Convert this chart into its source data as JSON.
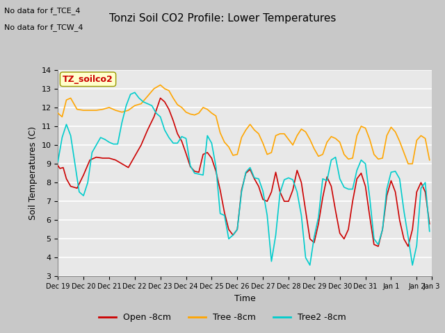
{
  "title": "Tonzi Soil CO2 Profile: Lower Temperatures",
  "xlabel": "Time",
  "ylabel": "Soil Temperatures (C)",
  "annotation1": "No data for f_TCE_4",
  "annotation2": "No data for f_TCW_4",
  "label_box": "TZ_soilco2",
  "ylim": [
    3.0,
    14.0
  ],
  "yticks": [
    3.0,
    4.0,
    5.0,
    6.0,
    7.0,
    8.0,
    9.0,
    10.0,
    11.0,
    12.0,
    13.0,
    14.0
  ],
  "fig_bg_color": "#c8c8c8",
  "plot_bg": "#e8e8e8",
  "legend_labels": [
    "Open -8cm",
    "Tree -8cm",
    "Tree2 -8cm"
  ],
  "legend_colors": [
    "#cc0000",
    "#ffa500",
    "#00cccc"
  ],
  "open_data": [
    [
      0,
      8.9
    ],
    [
      2,
      8.75
    ],
    [
      5,
      8.8
    ],
    [
      8,
      8.2
    ],
    [
      12,
      7.8
    ],
    [
      18,
      7.7
    ],
    [
      24,
      8.4
    ],
    [
      30,
      9.2
    ],
    [
      36,
      9.35
    ],
    [
      42,
      9.3
    ],
    [
      48,
      9.3
    ],
    [
      54,
      9.2
    ],
    [
      60,
      9.0
    ],
    [
      66,
      8.8
    ],
    [
      72,
      9.4
    ],
    [
      78,
      10.0
    ],
    [
      84,
      10.8
    ],
    [
      90,
      11.5
    ],
    [
      96,
      12.5
    ],
    [
      100,
      12.3
    ],
    [
      104,
      11.9
    ],
    [
      108,
      11.3
    ],
    [
      112,
      10.6
    ],
    [
      116,
      10.2
    ],
    [
      120,
      9.55
    ],
    [
      124,
      8.85
    ],
    [
      128,
      8.6
    ],
    [
      132,
      8.55
    ],
    [
      136,
      9.5
    ],
    [
      140,
      9.6
    ],
    [
      144,
      9.3
    ],
    [
      148,
      8.6
    ],
    [
      152,
      7.6
    ],
    [
      156,
      6.4
    ],
    [
      160,
      5.5
    ],
    [
      164,
      5.2
    ],
    [
      168,
      5.5
    ],
    [
      172,
      7.6
    ],
    [
      176,
      8.5
    ],
    [
      180,
      8.7
    ],
    [
      184,
      8.2
    ],
    [
      188,
      7.8
    ],
    [
      192,
      7.1
    ],
    [
      196,
      7.0
    ],
    [
      200,
      7.5
    ],
    [
      204,
      8.55
    ],
    [
      208,
      7.5
    ],
    [
      212,
      7.0
    ],
    [
      216,
      7.0
    ],
    [
      220,
      7.6
    ],
    [
      224,
      8.65
    ],
    [
      228,
      8.0
    ],
    [
      232,
      6.5
    ],
    [
      236,
      5.0
    ],
    [
      240,
      4.8
    ],
    [
      244,
      5.8
    ],
    [
      248,
      7.2
    ],
    [
      252,
      8.3
    ],
    [
      256,
      7.8
    ],
    [
      260,
      6.5
    ],
    [
      264,
      5.3
    ],
    [
      268,
      5.0
    ],
    [
      272,
      5.5
    ],
    [
      276,
      7.0
    ],
    [
      280,
      8.2
    ],
    [
      284,
      8.5
    ],
    [
      288,
      7.8
    ],
    [
      292,
      6.2
    ],
    [
      296,
      4.7
    ],
    [
      300,
      4.6
    ],
    [
      304,
      5.5
    ],
    [
      308,
      7.3
    ],
    [
      312,
      8.1
    ],
    [
      316,
      7.5
    ],
    [
      320,
      6.0
    ],
    [
      324,
      5.0
    ],
    [
      328,
      4.6
    ],
    [
      332,
      5.5
    ],
    [
      336,
      7.5
    ],
    [
      340,
      8.0
    ],
    [
      344,
      7.5
    ],
    [
      348,
      5.8
    ]
  ],
  "tree_data": [
    [
      0,
      11.7
    ],
    [
      4,
      11.5
    ],
    [
      8,
      12.4
    ],
    [
      12,
      12.5
    ],
    [
      18,
      11.9
    ],
    [
      24,
      11.85
    ],
    [
      30,
      11.85
    ],
    [
      36,
      11.85
    ],
    [
      42,
      11.9
    ],
    [
      48,
      12.0
    ],
    [
      54,
      11.85
    ],
    [
      60,
      11.75
    ],
    [
      66,
      11.85
    ],
    [
      72,
      12.1
    ],
    [
      78,
      12.2
    ],
    [
      84,
      12.6
    ],
    [
      90,
      13.0
    ],
    [
      96,
      13.2
    ],
    [
      100,
      13.0
    ],
    [
      104,
      12.9
    ],
    [
      108,
      12.5
    ],
    [
      112,
      12.15
    ],
    [
      116,
      12.0
    ],
    [
      120,
      11.75
    ],
    [
      124,
      11.65
    ],
    [
      128,
      11.6
    ],
    [
      132,
      11.7
    ],
    [
      136,
      12.0
    ],
    [
      140,
      11.9
    ],
    [
      144,
      11.7
    ],
    [
      148,
      11.55
    ],
    [
      152,
      10.65
    ],
    [
      156,
      10.15
    ],
    [
      160,
      9.9
    ],
    [
      164,
      9.45
    ],
    [
      168,
      9.5
    ],
    [
      172,
      10.4
    ],
    [
      176,
      10.8
    ],
    [
      180,
      11.1
    ],
    [
      184,
      10.8
    ],
    [
      188,
      10.6
    ],
    [
      192,
      10.1
    ],
    [
      196,
      9.5
    ],
    [
      200,
      9.6
    ],
    [
      204,
      10.5
    ],
    [
      208,
      10.6
    ],
    [
      212,
      10.6
    ],
    [
      216,
      10.3
    ],
    [
      220,
      10.0
    ],
    [
      224,
      10.5
    ],
    [
      228,
      10.85
    ],
    [
      232,
      10.7
    ],
    [
      236,
      10.3
    ],
    [
      240,
      9.8
    ],
    [
      244,
      9.4
    ],
    [
      248,
      9.5
    ],
    [
      252,
      10.15
    ],
    [
      256,
      10.45
    ],
    [
      260,
      10.35
    ],
    [
      264,
      10.15
    ],
    [
      268,
      9.5
    ],
    [
      272,
      9.25
    ],
    [
      276,
      9.3
    ],
    [
      280,
      10.5
    ],
    [
      284,
      11.0
    ],
    [
      288,
      10.9
    ],
    [
      292,
      10.3
    ],
    [
      296,
      9.5
    ],
    [
      300,
      9.25
    ],
    [
      304,
      9.3
    ],
    [
      308,
      10.5
    ],
    [
      312,
      10.95
    ],
    [
      316,
      10.7
    ],
    [
      320,
      10.2
    ],
    [
      324,
      9.6
    ],
    [
      328,
      9.0
    ],
    [
      332,
      9.0
    ],
    [
      336,
      10.25
    ],
    [
      340,
      10.5
    ],
    [
      344,
      10.35
    ],
    [
      348,
      9.2
    ]
  ],
  "tree2_data": [
    [
      0,
      9.1
    ],
    [
      4,
      10.4
    ],
    [
      8,
      11.1
    ],
    [
      12,
      10.5
    ],
    [
      16,
      9.0
    ],
    [
      20,
      7.5
    ],
    [
      24,
      7.3
    ],
    [
      28,
      8.0
    ],
    [
      32,
      9.6
    ],
    [
      36,
      10.0
    ],
    [
      40,
      10.4
    ],
    [
      44,
      10.3
    ],
    [
      48,
      10.15
    ],
    [
      52,
      10.05
    ],
    [
      56,
      10.05
    ],
    [
      60,
      11.2
    ],
    [
      64,
      12.1
    ],
    [
      68,
      12.7
    ],
    [
      72,
      12.8
    ],
    [
      76,
      12.5
    ],
    [
      80,
      12.3
    ],
    [
      84,
      12.2
    ],
    [
      88,
      12.1
    ],
    [
      92,
      11.7
    ],
    [
      96,
      11.5
    ],
    [
      100,
      10.8
    ],
    [
      104,
      10.4
    ],
    [
      108,
      10.1
    ],
    [
      112,
      10.1
    ],
    [
      116,
      10.45
    ],
    [
      120,
      10.35
    ],
    [
      124,
      8.9
    ],
    [
      128,
      8.5
    ],
    [
      132,
      8.45
    ],
    [
      136,
      8.4
    ],
    [
      140,
      10.5
    ],
    [
      144,
      10.1
    ],
    [
      148,
      8.85
    ],
    [
      152,
      6.35
    ],
    [
      156,
      6.25
    ],
    [
      160,
      5.0
    ],
    [
      164,
      5.2
    ],
    [
      168,
      5.5
    ],
    [
      172,
      7.5
    ],
    [
      176,
      8.55
    ],
    [
      180,
      8.8
    ],
    [
      184,
      8.25
    ],
    [
      188,
      8.2
    ],
    [
      192,
      7.55
    ],
    [
      196,
      6.25
    ],
    [
      200,
      3.8
    ],
    [
      204,
      5.2
    ],
    [
      208,
      7.45
    ],
    [
      212,
      8.15
    ],
    [
      216,
      8.25
    ],
    [
      220,
      8.15
    ],
    [
      224,
      7.5
    ],
    [
      228,
      6.25
    ],
    [
      232,
      4.0
    ],
    [
      236,
      3.6
    ],
    [
      240,
      5.1
    ],
    [
      244,
      6.15
    ],
    [
      248,
      8.2
    ],
    [
      252,
      8.1
    ],
    [
      256,
      9.2
    ],
    [
      260,
      9.35
    ],
    [
      264,
      8.2
    ],
    [
      268,
      7.75
    ],
    [
      272,
      7.65
    ],
    [
      276,
      7.65
    ],
    [
      280,
      8.65
    ],
    [
      284,
      9.2
    ],
    [
      288,
      9.0
    ],
    [
      292,
      7.2
    ],
    [
      296,
      5.0
    ],
    [
      300,
      4.7
    ],
    [
      304,
      5.5
    ],
    [
      308,
      7.65
    ],
    [
      312,
      8.55
    ],
    [
      316,
      8.6
    ],
    [
      320,
      8.2
    ],
    [
      324,
      6.5
    ],
    [
      328,
      5.1
    ],
    [
      332,
      3.6
    ],
    [
      336,
      4.65
    ],
    [
      340,
      7.7
    ],
    [
      344,
      8.0
    ],
    [
      348,
      5.4
    ]
  ],
  "xtick_positions": [
    0,
    24,
    48,
    72,
    96,
    120,
    144,
    168,
    192,
    216,
    240,
    264,
    288,
    312,
    336,
    350
  ],
  "xtick_labels": [
    "Dec 19",
    "Dec 20",
    "Dec 21",
    "Dec 22",
    "Dec 23",
    "Dec 24",
    "Dec 25",
    "Dec 26",
    "Dec 27",
    "Dec 28",
    "Dec 29",
    "Dec 30",
    "Dec 31",
    "Jan 1",
    "Jan 2",
    "Jan 3"
  ]
}
